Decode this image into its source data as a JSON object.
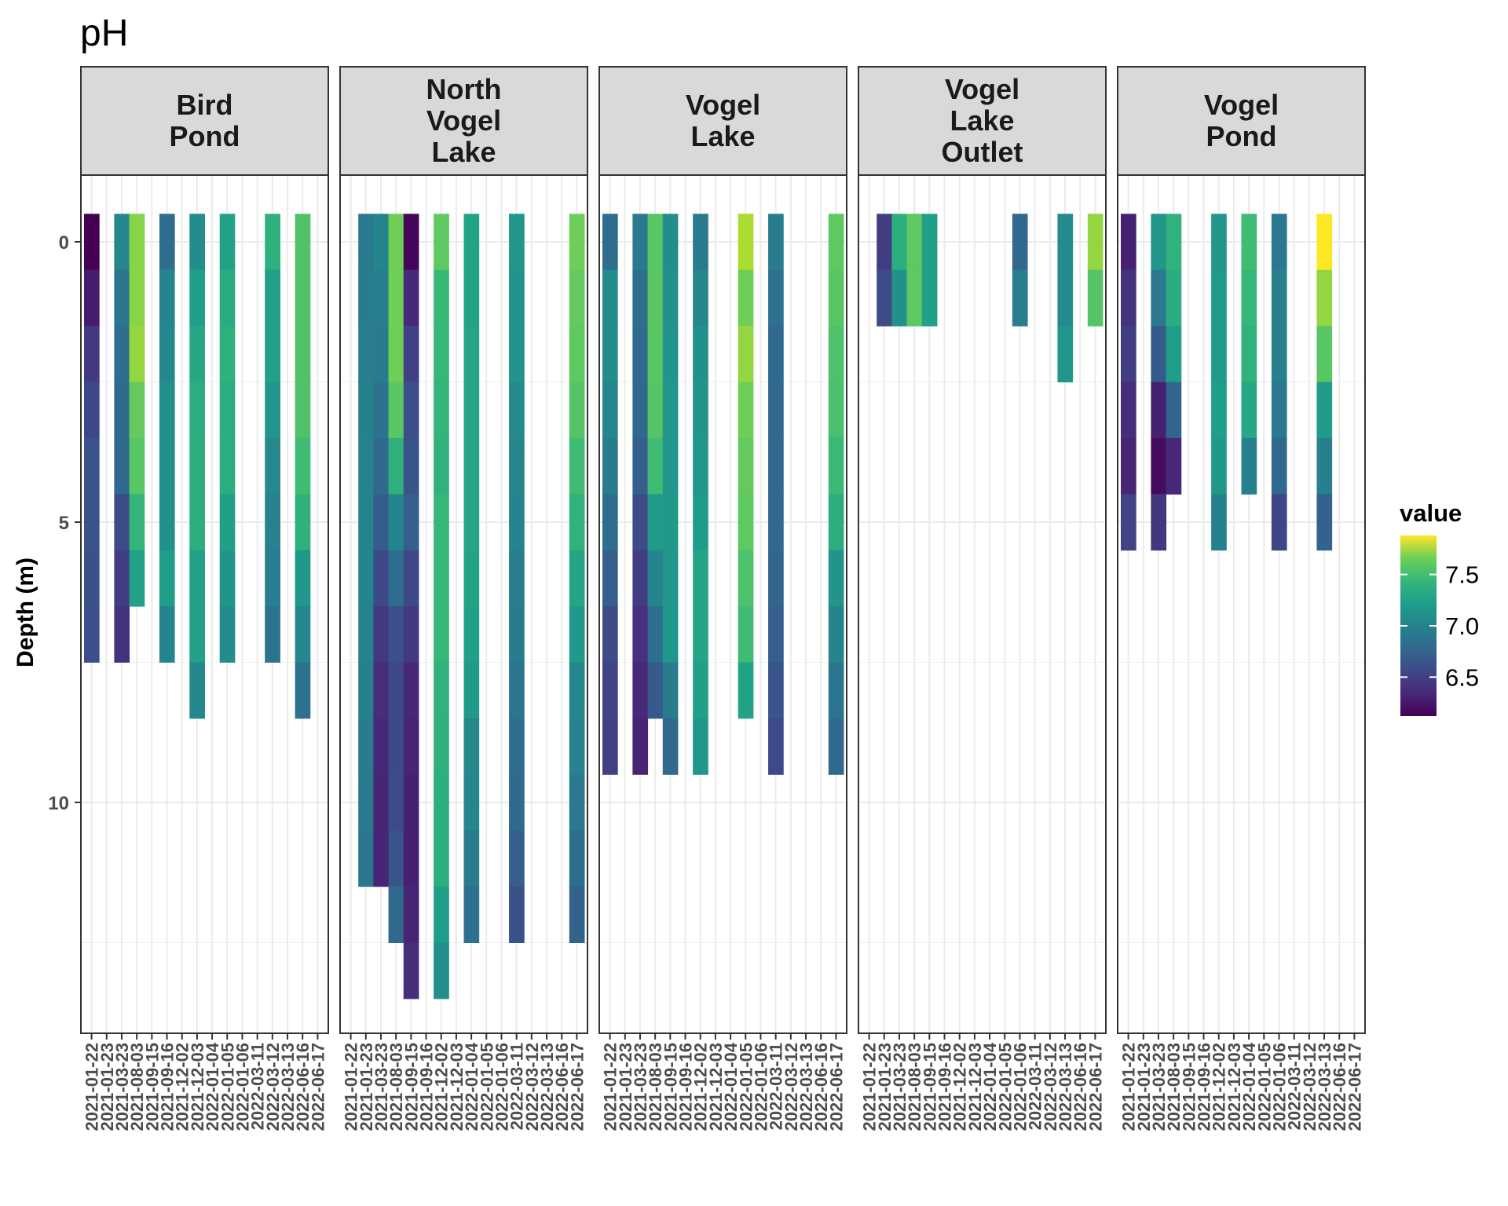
{
  "chart_data": {
    "type": "heatmap",
    "title": "pH",
    "xlabel": "",
    "ylabel": "Depth (m)",
    "y_reversed": true,
    "yticks": [
      0,
      5,
      10
    ],
    "ylim": [
      13.5,
      -0.5
    ],
    "grid": true,
    "legend": {
      "title": "value",
      "placement": "right",
      "ticks": [
        "7.5",
        "7.0",
        "6.5"
      ],
      "tick_values": [
        7.5,
        7.0,
        6.5
      ],
      "range": [
        6.12,
        7.88
      ],
      "colormap": "viridis"
    },
    "x_categories": [
      "2021-01-22",
      "2021-01-23",
      "2021-03-23",
      "2021-08-03",
      "2021-09-15",
      "2021-09-16",
      "2021-12-02",
      "2021-12-03",
      "2022-01-04",
      "2022-01-05",
      "2022-01-06",
      "2022-03-11",
      "2022-03-12",
      "2022-03-13",
      "2022-06-16",
      "2022-06-17"
    ],
    "panels": [
      {
        "name": "Bird\nPond",
        "columns": [
          {
            "date": "2021-01-22",
            "depths": [
              0,
              1,
              2,
              3,
              4,
              5,
              6,
              7
            ],
            "values": [
              6.12,
              6.27,
              6.45,
              6.55,
              6.64,
              6.64,
              6.62,
              6.6
            ]
          },
          {
            "date": "2021-03-23",
            "depths": [
              0,
              1,
              2,
              3,
              4,
              5,
              6,
              7
            ],
            "values": [
              7.04,
              6.9,
              6.82,
              6.8,
              6.78,
              6.58,
              6.48,
              6.42
            ]
          },
          {
            "date": "2021-08-03",
            "depths": [
              0,
              1,
              2,
              3,
              4,
              5,
              6
            ],
            "values": [
              7.7,
              7.7,
              7.72,
              7.62,
              7.58,
              7.42,
              7.25
            ]
          },
          {
            "date": "2021-09-16",
            "depths": [
              0,
              1,
              2,
              3,
              4,
              5,
              6,
              7
            ],
            "values": [
              6.82,
              7.02,
              7.05,
              7.12,
              7.12,
              7.12,
              7.22,
              7.02
            ]
          },
          {
            "date": "2021-12-03",
            "depths": [
              0,
              1,
              2,
              3,
              4,
              5,
              6,
              7,
              8
            ],
            "values": [
              7.08,
              7.22,
              7.3,
              7.35,
              7.36,
              7.36,
              7.25,
              7.25,
              7.05
            ]
          },
          {
            "date": "2022-01-05",
            "depths": [
              0,
              1,
              2,
              3,
              4,
              5,
              6,
              7
            ],
            "values": [
              7.25,
              7.34,
              7.38,
              7.35,
              7.35,
              7.24,
              7.15,
              7.08
            ]
          },
          {
            "date": "2022-03-12",
            "depths": [
              0,
              1,
              2,
              3,
              4,
              5,
              6,
              7
            ],
            "values": [
              7.38,
              7.24,
              7.24,
              7.15,
              7.05,
              7.0,
              6.96,
              6.88
            ]
          },
          {
            "date": "2022-06-16",
            "depths": [
              0,
              1,
              2,
              3,
              4,
              5,
              6,
              7,
              8
            ],
            "values": [
              7.55,
              7.55,
              7.55,
              7.54,
              7.48,
              7.38,
              7.18,
              7.04,
              6.86
            ]
          }
        ]
      },
      {
        "name": "North\nVogel\nLake",
        "columns": [
          {
            "date": "2021-01-23",
            "depths": [
              0,
              1,
              2,
              3,
              4,
              5,
              6,
              7,
              8,
              9,
              10,
              11
            ],
            "values": [
              6.92,
              6.94,
              6.97,
              6.99,
              7.0,
              7.02,
              7.02,
              7.0,
              6.98,
              6.95,
              6.92,
              6.9
            ]
          },
          {
            "date": "2021-03-23",
            "depths": [
              0,
              1,
              2,
              3,
              4,
              5,
              6,
              7,
              8,
              9,
              10,
              11
            ],
            "values": [
              7.02,
              6.96,
              6.94,
              6.88,
              6.8,
              6.7,
              6.56,
              6.45,
              6.38,
              6.35,
              6.33,
              6.32
            ]
          },
          {
            "date": "2021-08-03",
            "depths": [
              0,
              1,
              2,
              3,
              4,
              5,
              6,
              7,
              8,
              9,
              10,
              11,
              12
            ],
            "values": [
              7.66,
              7.66,
              7.66,
              7.58,
              7.38,
              7.02,
              6.82,
              6.6,
              6.56,
              6.56,
              6.58,
              6.64,
              6.78
            ]
          },
          {
            "date": "2021-09-15",
            "depths": [
              0,
              1,
              2,
              3,
              4,
              5,
              6,
              7,
              8,
              9,
              10,
              11,
              12,
              13
            ],
            "values": [
              6.15,
              6.35,
              6.5,
              6.6,
              6.64,
              6.72,
              6.55,
              6.45,
              6.35,
              6.32,
              6.3,
              6.3,
              6.32,
              6.38
            ]
          },
          {
            "date": "2021-12-02",
            "depths": [
              0,
              1,
              2,
              3,
              4,
              5,
              6,
              7,
              8,
              9,
              10,
              11,
              12,
              13
            ],
            "values": [
              7.6,
              7.45,
              7.44,
              7.42,
              7.4,
              7.44,
              7.44,
              7.44,
              7.4,
              7.38,
              7.36,
              7.36,
              7.22,
              7.1
            ]
          },
          {
            "date": "2022-01-04",
            "depths": [
              0,
              1,
              2,
              3,
              4,
              5,
              6,
              7,
              8,
              9,
              10,
              11,
              12
            ],
            "values": [
              7.26,
              7.26,
              7.28,
              7.28,
              7.28,
              7.28,
              7.26,
              7.24,
              7.2,
              7.05,
              7.04,
              6.95,
              6.86
            ]
          },
          {
            "date": "2022-03-11",
            "depths": [
              0,
              1,
              2,
              3,
              4,
              5,
              6,
              7,
              8,
              9,
              10,
              11,
              12
            ],
            "values": [
              7.16,
              7.14,
              7.14,
              7.06,
              7.04,
              7.02,
              6.96,
              6.94,
              6.9,
              6.82,
              6.8,
              6.72,
              6.62
            ]
          },
          {
            "date": "2022-06-17",
            "depths": [
              0,
              1,
              2,
              3,
              4,
              5,
              6,
              7,
              8,
              9,
              10,
              11,
              12
            ],
            "values": [
              7.66,
              7.62,
              7.6,
              7.56,
              7.48,
              7.4,
              7.28,
              7.18,
              7.04,
              7.0,
              6.92,
              6.82,
              6.74
            ]
          }
        ]
      },
      {
        "name": "Vogel\nLake",
        "columns": [
          {
            "date": "2021-01-22",
            "depths": [
              0,
              1,
              2,
              3,
              4,
              5,
              6,
              7,
              8,
              9
            ],
            "values": [
              6.82,
              7.08,
              7.08,
              7.04,
              6.94,
              6.82,
              6.72,
              6.58,
              6.52,
              6.5
            ]
          },
          {
            "date": "2021-03-23",
            "depths": [
              0,
              1,
              2,
              3,
              4,
              5,
              6,
              7,
              8,
              9
            ],
            "values": [
              6.92,
              6.84,
              6.8,
              6.78,
              6.72,
              6.58,
              6.48,
              6.4,
              6.34,
              6.32
            ]
          },
          {
            "date": "2021-08-03",
            "depths": [
              0,
              1,
              2,
              3,
              4,
              5,
              6,
              7,
              8
            ],
            "values": [
              7.58,
              7.58,
              7.58,
              7.56,
              7.48,
              7.2,
              7.02,
              6.82,
              6.68
            ]
          },
          {
            "date": "2021-09-15",
            "depths": [
              0,
              1,
              2,
              3,
              4,
              5,
              6,
              7,
              8,
              9
            ],
            "values": [
              7.08,
              7.12,
              7.14,
              7.16,
              7.16,
              7.18,
              7.16,
              7.16,
              6.94,
              6.78
            ]
          },
          {
            "date": "2021-12-02",
            "depths": [
              0,
              1,
              2,
              3,
              4,
              5,
              6,
              7,
              8,
              9
            ],
            "values": [
              6.94,
              7.04,
              7.12,
              7.14,
              7.16,
              7.2,
              7.28,
              7.28,
              7.24,
              7.16
            ]
          },
          {
            "date": "2022-01-05",
            "depths": [
              0,
              1,
              2,
              3,
              4,
              5,
              6,
              7,
              8
            ],
            "values": [
              7.76,
              7.66,
              7.72,
              7.66,
              7.62,
              7.6,
              7.54,
              7.48,
              7.26
            ]
          },
          {
            "date": "2022-03-11",
            "depths": [
              0,
              1,
              2,
              3,
              4,
              5,
              6,
              7,
              8,
              9
            ],
            "values": [
              6.94,
              6.86,
              6.8,
              6.78,
              6.78,
              6.78,
              6.76,
              6.72,
              6.64,
              6.56
            ]
          },
          {
            "date": "2022-06-17",
            "depths": [
              0,
              1,
              2,
              3,
              4,
              5,
              6,
              7,
              8,
              9
            ],
            "values": [
              7.6,
              7.58,
              7.54,
              7.52,
              7.46,
              7.36,
              7.14,
              7.02,
              6.9,
              6.8
            ]
          }
        ]
      },
      {
        "name": "Vogel\nLake\nOutlet",
        "columns": [
          {
            "date": "2021-01-23",
            "depths": [
              0,
              1
            ],
            "values": [
              6.48,
              6.58
            ]
          },
          {
            "date": "2021-03-23",
            "depths": [
              0,
              1
            ],
            "values": [
              7.36,
              7.12
            ]
          },
          {
            "date": "2021-08-03",
            "depths": [
              0,
              1
            ],
            "values": [
              7.6,
              7.6
            ]
          },
          {
            "date": "2021-09-15",
            "depths": [
              0,
              1
            ],
            "values": [
              7.24,
              7.24
            ]
          },
          {
            "date": "2022-01-06",
            "depths": [
              0,
              1
            ],
            "values": [
              6.78,
              6.96
            ]
          },
          {
            "date": "2022-03-13",
            "depths": [
              0,
              1,
              2
            ],
            "values": [
              7.06,
              7.06,
              7.16
            ]
          },
          {
            "date": "2022-06-17",
            "depths": [
              0,
              1
            ],
            "values": [
              7.72,
              7.56
            ]
          }
        ]
      },
      {
        "name": "Vogel\nPond",
        "columns": [
          {
            "date": "2021-01-22",
            "depths": [
              0,
              1,
              2,
              3,
              4,
              5
            ],
            "values": [
              6.3,
              6.42,
              6.48,
              6.38,
              6.32,
              6.52
            ]
          },
          {
            "date": "2021-03-23",
            "depths": [
              0,
              1,
              2,
              3,
              4,
              5
            ],
            "values": [
              7.16,
              6.92,
              6.68,
              6.3,
              6.18,
              6.44
            ]
          },
          {
            "date": "2021-08-03",
            "depths": [
              0,
              1,
              2,
              3,
              4
            ],
            "values": [
              7.4,
              7.34,
              7.22,
              6.76,
              6.34
            ]
          },
          {
            "date": "2021-12-02",
            "depths": [
              0,
              1,
              2,
              3,
              4,
              5
            ],
            "values": [
              7.16,
              7.2,
              7.2,
              7.22,
              7.18,
              6.98
            ]
          },
          {
            "date": "2022-01-04",
            "depths": [
              0,
              1,
              2,
              3,
              4
            ],
            "values": [
              7.48,
              7.44,
              7.4,
              7.3,
              6.98
            ]
          },
          {
            "date": "2022-01-06",
            "depths": [
              0,
              1,
              2,
              3,
              4,
              5
            ],
            "values": [
              6.92,
              6.98,
              6.98,
              6.92,
              6.78,
              6.54
            ]
          },
          {
            "date": "2022-03-13",
            "depths": [
              0,
              1,
              2,
              3,
              4,
              5
            ],
            "values": [
              7.88,
              7.72,
              7.58,
              7.2,
              6.98,
              6.74
            ]
          }
        ]
      }
    ]
  }
}
